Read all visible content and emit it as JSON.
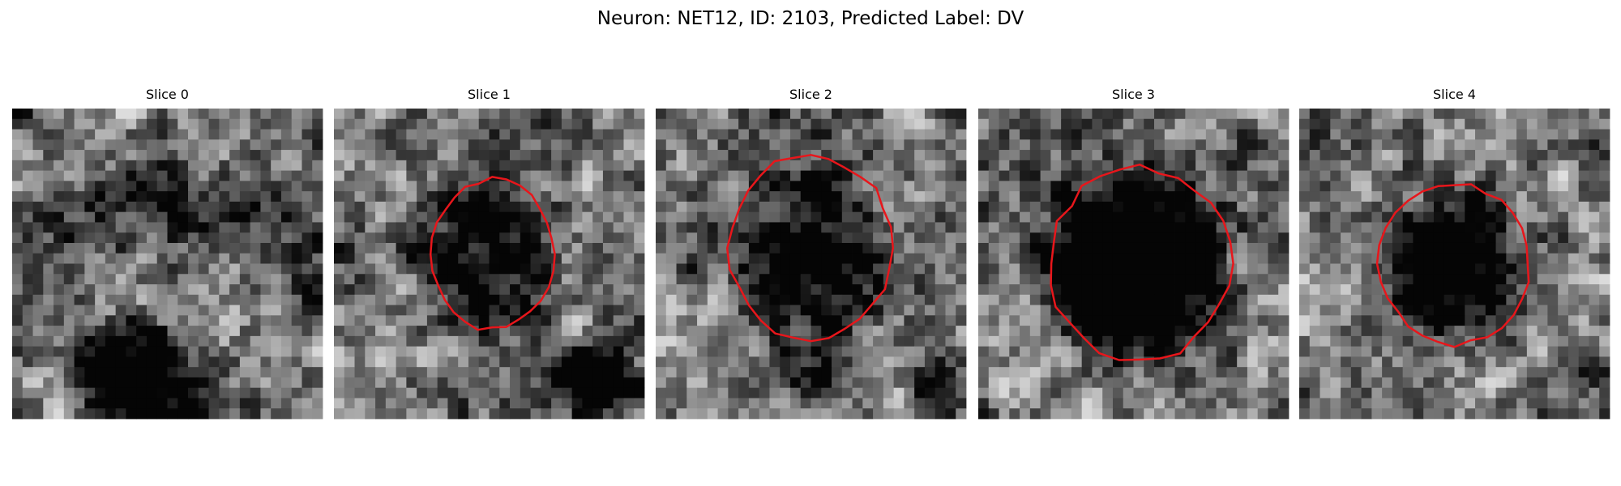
{
  "title": "Neuron: NET12, ID: 2103, Predicted Label: DV",
  "panels": [
    {
      "title": "Slice 0"
    },
    {
      "title": "Slice 1"
    },
    {
      "title": "Slice 2"
    },
    {
      "title": "Slice 3"
    },
    {
      "title": "Slice 4"
    }
  ]
}
